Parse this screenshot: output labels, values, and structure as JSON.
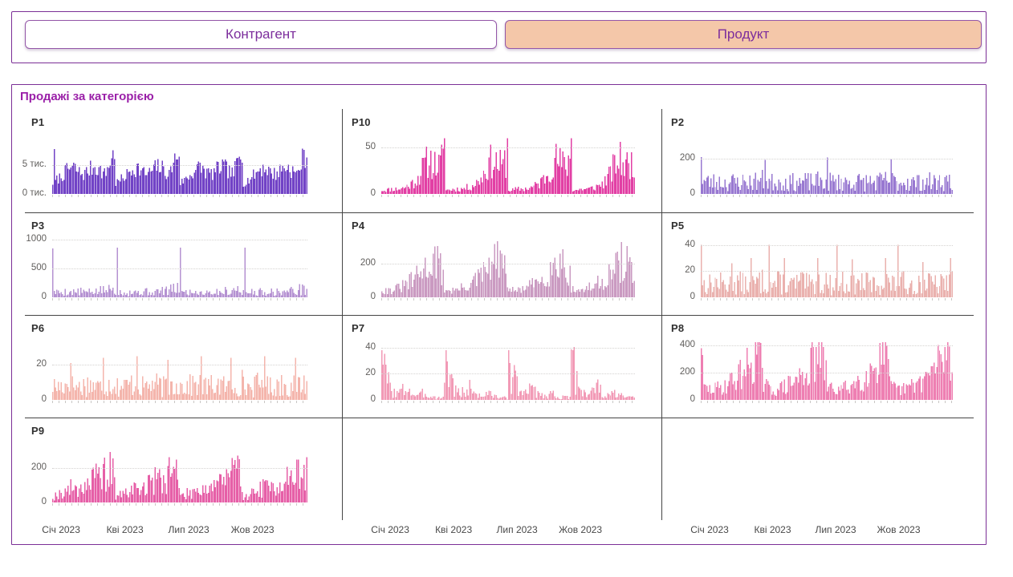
{
  "filters": {
    "buttons": [
      {
        "label": "Контрагент",
        "active": false
      },
      {
        "label": "Продукт",
        "active": true
      }
    ]
  },
  "panel": {
    "title": "Продажі за категорією"
  },
  "chart_data": {
    "type": "bar",
    "subtype": "small-multiples-daily-sales",
    "title": "Продажі за категорією",
    "x_range_labels": [
      "Січ 2023",
      "Кві 2023",
      "Лип 2023",
      "Жов 2023"
    ],
    "grid": {
      "columns": 3,
      "order": [
        "P1",
        "P10",
        "P2",
        "P3",
        "P4",
        "P5",
        "P6",
        "P7",
        "P8",
        "P9"
      ]
    },
    "multiples": [
      {
        "name": "P1",
        "color": "#7142c6",
        "ymax": 10000,
        "clip": 8400,
        "seed": 7,
        "y_ticks": [
          {
            "label": "5 тис.",
            "value": 5000
          },
          {
            "label": "0 тис.",
            "value": 0
          }
        ],
        "pattern": "high dense baseline with four quarterly humps peaking ~8 тис. before each quarter end",
        "envelope_quarter": [
          2000,
          2700,
          3500,
          4600,
          5000,
          4100,
          3700,
          4500,
          5200,
          4500,
          3600,
          6300,
          8000
        ],
        "noise": [
          0.6,
          1.25
        ],
        "spikes": [
          [
            0.003,
            7800
          ]
        ]
      },
      {
        "name": "P10",
        "color": "#e23fa4",
        "ymax": 62,
        "clip": 62,
        "seed": 11,
        "y_ticks": [
          {
            "label": "50",
            "value": 50
          },
          {
            "label": "0",
            "value": 0
          }
        ],
        "pattern": "low first half of each quarter then ramp to ~35 with spike 60 at quarter end",
        "envelope_quarter": [
          4,
          4,
          5,
          5,
          6,
          8,
          11,
          17,
          27,
          35,
          31,
          28,
          40
        ],
        "noise": [
          0.45,
          1.65
        ],
        "spikes": [
          [
            0.247,
            60
          ],
          [
            0.497,
            60
          ],
          [
            0.747,
            60
          ]
        ]
      },
      {
        "name": "P2",
        "color": "#9878d1",
        "ymax": 330,
        "clip": 330,
        "seed": 23,
        "y_ticks": [
          {
            "label": "200",
            "value": 200
          },
          {
            "label": "0",
            "value": 0
          }
        ],
        "pattern": "noisy 20-130 baseline with ~210 spikes at each quarter start",
        "envelope_quarter": [
          60,
          55,
          52,
          55,
          52,
          50,
          54,
          52,
          55,
          52,
          55,
          58,
          62
        ],
        "noise": [
          0.25,
          2.3
        ],
        "spikes": [
          [
            0.002,
            210
          ],
          [
            0.252,
            195
          ],
          [
            0.502,
            208
          ],
          [
            0.752,
            200
          ]
        ]
      },
      {
        "name": "P3",
        "color": "#b592d2",
        "ymax": 1000,
        "clip": 1000,
        "seed": 5,
        "y_ticks": [
          {
            "label": "1000",
            "value": 1000
          },
          {
            "label": "500",
            "value": 500
          },
          {
            "label": "0",
            "value": 0
          }
        ],
        "pattern": "low noisy 20-250 baseline with narrow ~860 spikes at each quarter start",
        "envelope_quarter": [
          70,
          72,
          75,
          78,
          75,
          82,
          78,
          75,
          85,
          95,
          105,
          115,
          125
        ],
        "noise": [
          0.3,
          2.1
        ],
        "spikes": [
          [
            0.002,
            850
          ],
          [
            0.252,
            860
          ],
          [
            0.502,
            858
          ],
          [
            0.752,
            862
          ]
        ]
      },
      {
        "name": "P4",
        "color": "#ca9ac1",
        "ymax": 340,
        "clip": 340,
        "seed": 31,
        "y_ticks": [
          {
            "label": "200",
            "value": 200
          },
          {
            "label": "0",
            "value": 0
          }
        ],
        "pattern": "broad quarterly humps peaking ~260 late in each quarter",
        "envelope_quarter": [
          60,
          45,
          50,
          60,
          75,
          95,
          120,
          150,
          185,
          225,
          260,
          225,
          110
        ],
        "noise": [
          0.35,
          1.35
        ],
        "spikes": []
      },
      {
        "name": "P5",
        "color": "#eab1ae",
        "ymax": 44,
        "clip": 44,
        "seed": 13,
        "y_ticks": [
          {
            "label": "40",
            "value": 40
          },
          {
            "label": "20",
            "value": 20
          },
          {
            "label": "0",
            "value": 0
          }
        ],
        "pattern": "uniform noisy 2-20 with occasional spikes to 30 and 40",
        "envelope_quarter": [
          9,
          8,
          9,
          10,
          9,
          8,
          9,
          10,
          9,
          8,
          9,
          10,
          11
        ],
        "noise": [
          0.2,
          2.1
        ],
        "spikes": [
          [
            0.002,
            40
          ],
          [
            0.27,
            40
          ],
          [
            0.54,
            40
          ],
          [
            0.78,
            40
          ],
          [
            0.2,
            30
          ],
          [
            0.33,
            30
          ],
          [
            0.46,
            30
          ],
          [
            0.6,
            29
          ],
          [
            0.73,
            30
          ],
          [
            0.99,
            30
          ],
          [
            0.12,
            26
          ],
          [
            0.88,
            27
          ]
        ]
      },
      {
        "name": "P6",
        "color": "#f4b5ac",
        "ymax": 33,
        "clip": 33,
        "seed": 17,
        "y_ticks": [
          {
            "label": "20",
            "value": 20
          },
          {
            "label": "0",
            "value": 0
          }
        ],
        "pattern": "uniform noisy 1-16 with spikes to ~25",
        "envelope_quarter": [
          7,
          6.5,
          7,
          8,
          7,
          6.5,
          7,
          8,
          7,
          6.5,
          7,
          8,
          9
        ],
        "noise": [
          0.2,
          2.1
        ],
        "spikes": [
          [
            0.2,
            24
          ],
          [
            0.33,
            25
          ],
          [
            0.45,
            23
          ],
          [
            0.58,
            25
          ],
          [
            0.7,
            24
          ],
          [
            0.83,
            25
          ],
          [
            0.95,
            24
          ],
          [
            0.07,
            21
          ]
        ]
      },
      {
        "name": "P7",
        "color": "#f29ab6",
        "ymax": 44,
        "clip": 44,
        "seed": 3,
        "y_ticks": [
          {
            "label": "40",
            "value": 40
          },
          {
            "label": "20",
            "value": 20
          },
          {
            "label": "0",
            "value": 0
          }
        ],
        "pattern": "burst ~38 at each quarter start decaying to near zero by quarter end",
        "envelope_quarter": [
          34,
          20,
          9,
          5,
          8,
          11,
          5,
          3,
          6,
          4,
          2.5,
          2,
          1.5
        ],
        "noise": [
          0.15,
          1.6
        ],
        "spikes": [
          [
            0.002,
            38
          ],
          [
            0.252,
            38
          ],
          [
            0.502,
            38
          ],
          [
            0.752,
            38
          ]
        ]
      },
      {
        "name": "P8",
        "color": "#ee7fb2",
        "ymax": 425,
        "clip": 425,
        "seed": 29,
        "y_ticks": [
          {
            "label": "400",
            "value": 400
          },
          {
            "label": "200",
            "value": 200
          },
          {
            "label": "0",
            "value": 0
          }
        ],
        "pattern": "noisy 30-130 baseline with quarterly humps peaking ~380 and an opening spike 380",
        "envelope_quarter": [
          115,
          85,
          75,
          85,
          100,
          120,
          145,
          175,
          210,
          255,
          330,
          370,
          160
        ],
        "noise": [
          0.35,
          1.6
        ],
        "spikes": [
          [
            0.002,
            380
          ],
          [
            0.006,
            330
          ]
        ]
      },
      {
        "name": "P9",
        "color": "#e65fa7",
        "ymax": 335,
        "clip": 335,
        "seed": 19,
        "y_ticks": [
          {
            "label": "200",
            "value": 200
          },
          {
            "label": "0",
            "value": 0
          }
        ],
        "pattern": "level builds through each quarter with twin ~260 spikes near quarter end",
        "envelope_quarter": [
          30,
          42,
          55,
          70,
          85,
          75,
          95,
          115,
          135,
          125,
          150,
          170,
          115
        ],
        "noise": [
          0.35,
          1.75
        ],
        "spikes": [
          [
            0.205,
            260
          ],
          [
            0.235,
            255
          ],
          [
            0.456,
            262
          ],
          [
            0.485,
            250
          ],
          [
            0.705,
            258
          ],
          [
            0.73,
            252
          ],
          [
            0.955,
            250
          ],
          [
            0.997,
            262
          ]
        ]
      }
    ]
  }
}
